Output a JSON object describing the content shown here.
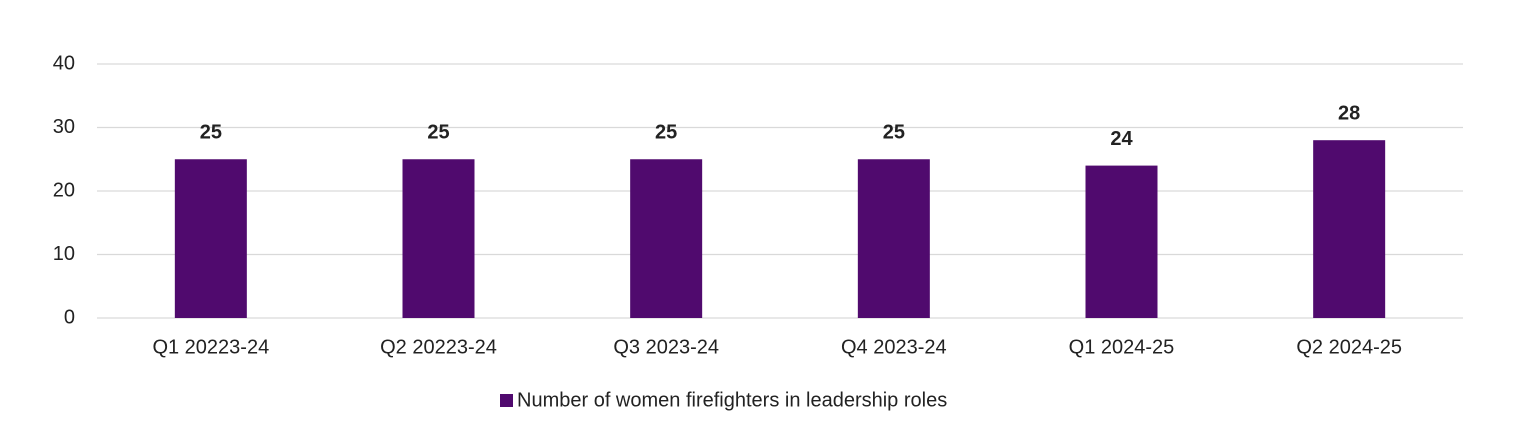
{
  "chart_data": {
    "type": "bar",
    "categories": [
      "Q1 20223-24",
      "Q2 20223-24",
      "Q3 2023-24",
      "Q4 2023-24",
      "Q1 2024-25",
      "Q2 2024-25"
    ],
    "series": [
      {
        "name": "Number of women firefighters in leadership roles",
        "color": "#500a6e",
        "values": [
          25,
          25,
          25,
          25,
          24,
          28
        ]
      }
    ],
    "ylim": [
      0,
      40
    ],
    "yticks": [
      0,
      10,
      20,
      30,
      40
    ],
    "grid": true,
    "legend": "bottom",
    "data_labels": true
  }
}
